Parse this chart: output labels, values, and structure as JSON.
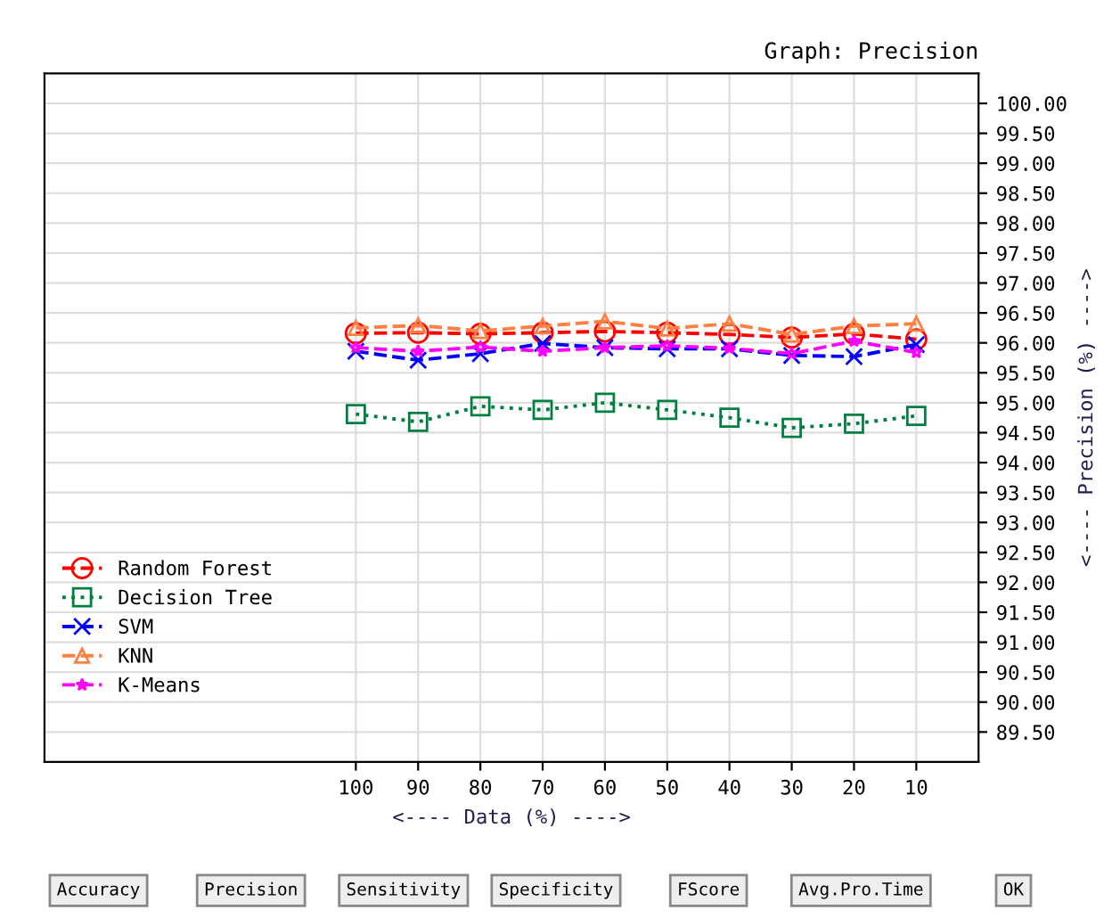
{
  "chart_data": {
    "type": "line",
    "title": "Graph: Precision",
    "xlabel": "<---- Data (%) ---->",
    "ylabel": "<---- Precision (%) ---->",
    "x": [
      100,
      90,
      80,
      70,
      60,
      50,
      40,
      30,
      20,
      10
    ],
    "series": [
      {
        "name": "Random Forest",
        "color": "#ff0000",
        "marker": "circle",
        "line_style": "dashed",
        "values": [
          96.16,
          96.17,
          96.15,
          96.17,
          96.19,
          96.17,
          96.14,
          96.09,
          96.15,
          96.06
        ]
      },
      {
        "name": "Decision Tree",
        "color": "#008040",
        "marker": "square",
        "line_style": "dotted",
        "values": [
          94.81,
          94.68,
          94.94,
          94.88,
          95.0,
          94.88,
          94.75,
          94.58,
          94.65,
          94.78
        ]
      },
      {
        "name": "SVM",
        "color": "#0000ff",
        "marker": "cross",
        "line_style": "dashed",
        "values": [
          95.86,
          95.71,
          95.82,
          95.99,
          95.92,
          95.9,
          95.9,
          95.79,
          95.77,
          95.97
        ]
      },
      {
        "name": "KNN",
        "color": "#ff8040",
        "marker": "triangle",
        "line_style": "dashed",
        "values": [
          96.25,
          96.29,
          96.2,
          96.28,
          96.36,
          96.24,
          96.32,
          96.14,
          96.28,
          96.32
        ]
      },
      {
        "name": "K-Means",
        "color": "#ff00ff",
        "marker": "star",
        "line_style": "dashed",
        "values": [
          95.92,
          95.86,
          95.93,
          95.86,
          95.92,
          95.95,
          95.91,
          95.82,
          96.03,
          95.84
        ]
      }
    ],
    "xlim": [
      150,
      0
    ],
    "xticks": [
      100,
      90,
      80,
      70,
      60,
      50,
      40,
      30,
      20,
      10
    ],
    "ylim": [
      89,
      100.5
    ],
    "yticks": [
      {
        "value": 89.5,
        "label": "89.50"
      },
      {
        "value": 90,
        "label": "90.00"
      },
      {
        "value": 90.5,
        "label": "90.50"
      },
      {
        "value": 91,
        "label": "91.00"
      },
      {
        "value": 91.5,
        "label": "91.50"
      },
      {
        "value": 92,
        "label": "92.00"
      },
      {
        "value": 92.5,
        "label": "92.50"
      },
      {
        "value": 93,
        "label": "93.00"
      },
      {
        "value": 93.5,
        "label": "93.50"
      },
      {
        "value": 94,
        "label": "94.00"
      },
      {
        "value": 94.5,
        "label": "94.50"
      },
      {
        "value": 95,
        "label": "95.00"
      },
      {
        "value": 95.5,
        "label": "95.50"
      },
      {
        "value": 96,
        "label": "96.00"
      },
      {
        "value": 96.5,
        "label": "96.50"
      },
      {
        "value": 97,
        "label": "97.00"
      },
      {
        "value": 97.5,
        "label": "97.50"
      },
      {
        "value": 98,
        "label": "98.00"
      },
      {
        "value": 98.5,
        "label": "98.50"
      },
      {
        "value": 99,
        "label": "99.00"
      },
      {
        "value": 99.5,
        "label": "99.50"
      },
      {
        "value": 100,
        "label": "100.00"
      }
    ],
    "grid": true,
    "legend": "bottom left",
    "annotations": [
      "Accuracy",
      "Precision",
      "Sensitivity",
      "Specificity",
      "FScore",
      "Avg.Pro.Time",
      "OK"
    ]
  }
}
